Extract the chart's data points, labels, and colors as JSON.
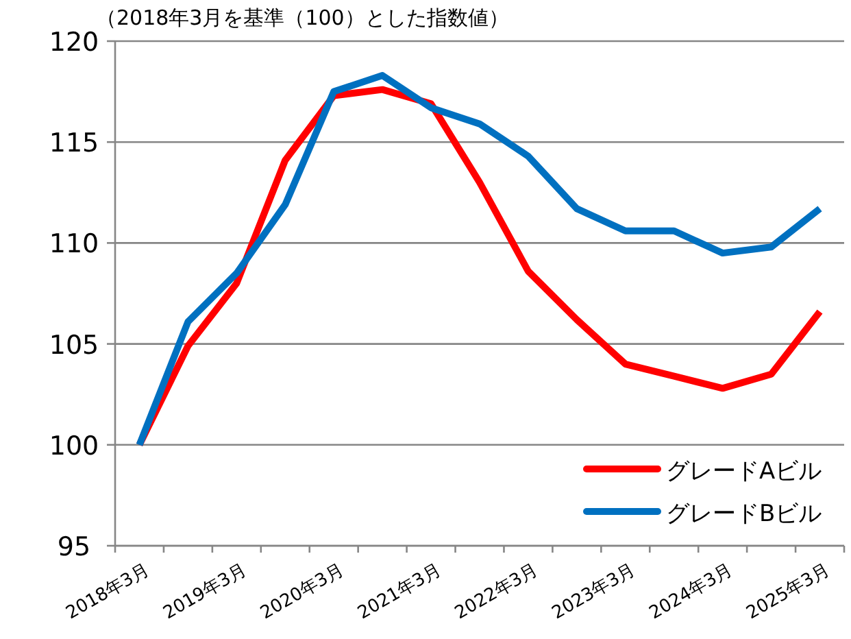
{
  "chart_data": {
    "type": "line",
    "subtitle": "（2018年3月を基準（100）とした指数値）",
    "categories": [
      "2018年3月",
      null,
      "2019年3月",
      null,
      "2020年3月",
      null,
      "2021年3月",
      null,
      "2022年3月",
      null,
      "2023年3月",
      null,
      "2024年3月",
      null,
      "2025年3月"
    ],
    "series": [
      {
        "name": "グレードAビル",
        "color": "#ff0000",
        "values": [
          100,
          104.9,
          108.0,
          114.1,
          117.3,
          117.6,
          116.9,
          113.0,
          108.6,
          106.2,
          104.0,
          103.4,
          102.8,
          103.5,
          106.6
        ]
      },
      {
        "name": "グレードBビル",
        "color": "#0070c0",
        "values": [
          100,
          106.1,
          108.5,
          111.9,
          117.5,
          118.3,
          116.7,
          115.9,
          114.3,
          111.7,
          110.6,
          110.6,
          109.5,
          109.8,
          111.7
        ]
      }
    ],
    "ylim": [
      95,
      120
    ],
    "yticks": [
      95,
      100,
      105,
      110,
      115,
      120
    ],
    "grid": "y",
    "legend": "bottom right",
    "marker": "none",
    "line_style": "solid"
  }
}
